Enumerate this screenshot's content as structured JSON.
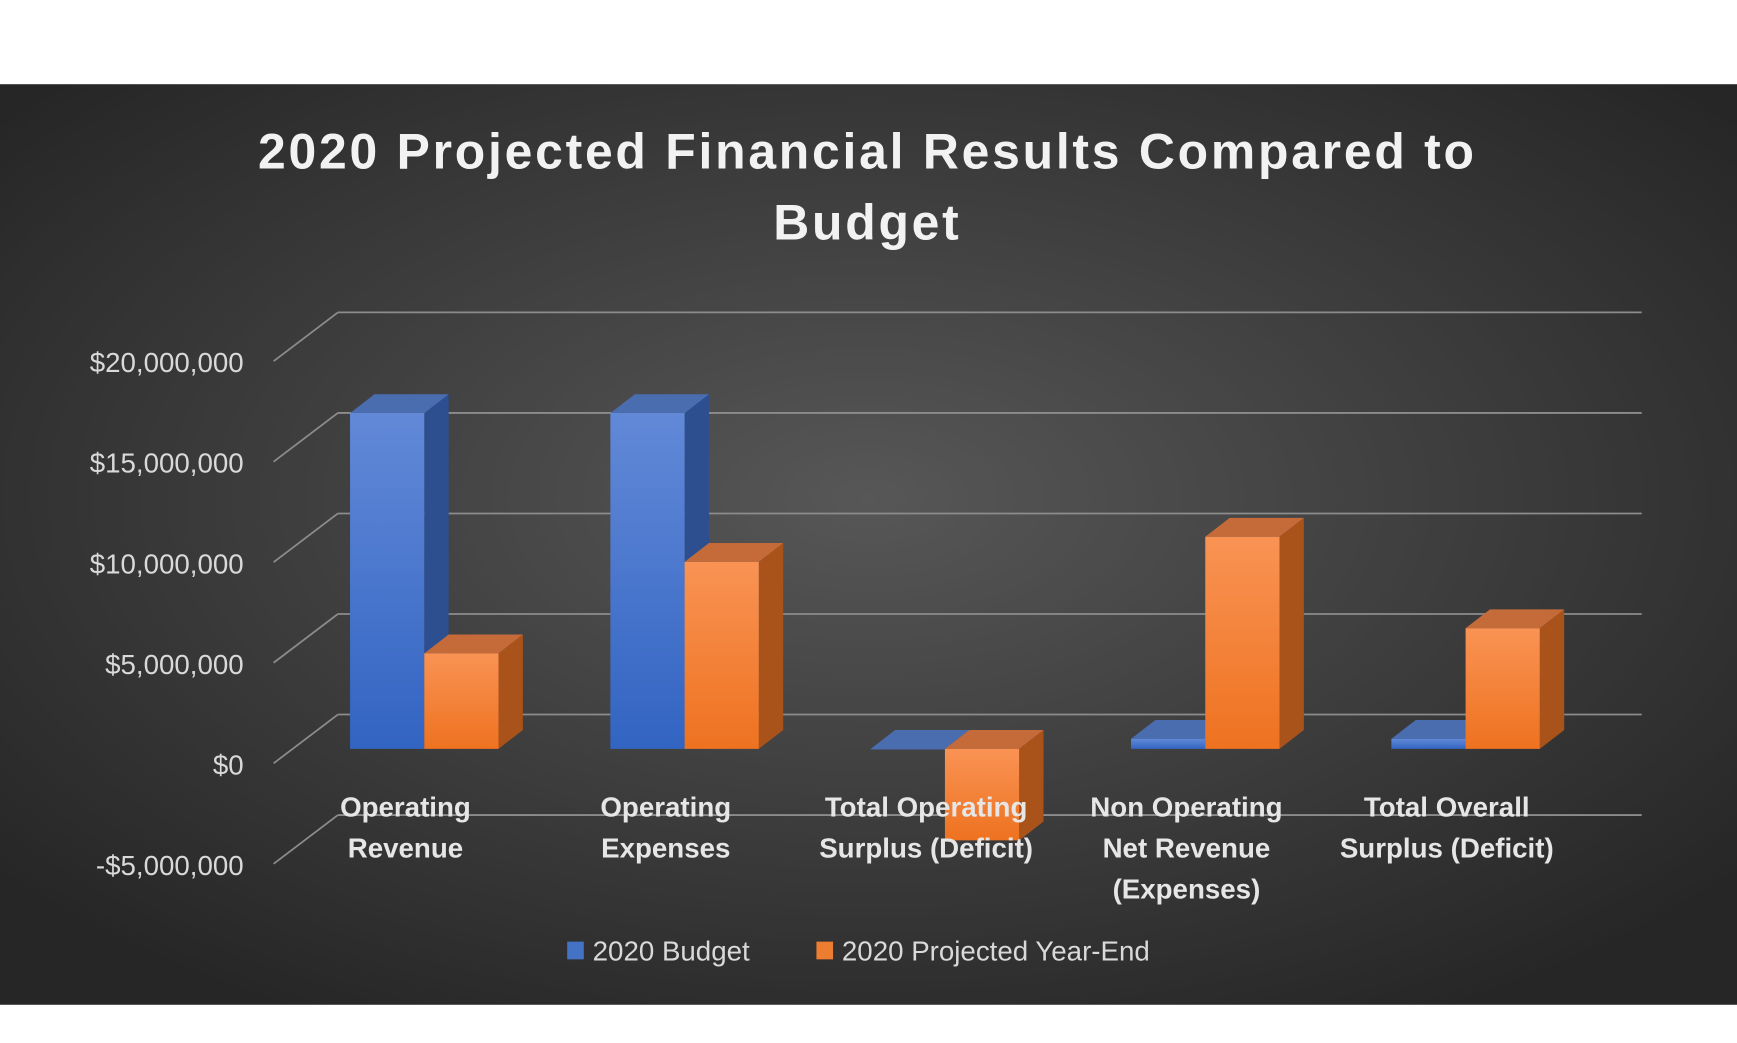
{
  "chart_data": {
    "type": "bar",
    "style": "3d-clustered-column",
    "title": "2020 Projected Financial Results Compared to Budget",
    "title_lines": [
      "2020 Projected Financial Results Compared to",
      "Budget"
    ],
    "xlabel": "",
    "ylabel": "",
    "categories": [
      "Operating Revenue",
      "Operating Expenses",
      "Total Operating Surplus (Deficit)",
      "Non Operating Net Revenue (Expenses)",
      "Total Overall Surplus (Deficit)"
    ],
    "category_lines": [
      [
        "Operating",
        "Revenue"
      ],
      [
        "Operating",
        "Expenses"
      ],
      [
        "Total Operating",
        "Surplus (Deficit)"
      ],
      [
        "Non Operating",
        "Net Revenue",
        "(Expenses)"
      ],
      [
        "Total Overall",
        "Surplus (Deficit)"
      ]
    ],
    "series": [
      {
        "name": "2020 Budget",
        "color": "#4472c4",
        "values": [
          16700000,
          16700000,
          0,
          500000,
          500000
        ]
      },
      {
        "name": "2020 Projected Year-End",
        "color": "#ed7d31",
        "values": [
          4750000,
          9300000,
          -4550000,
          10550000,
          6000000
        ]
      }
    ],
    "ylim": [
      -5000000,
      20000000
    ],
    "yticks": [
      -5000000,
      0,
      5000000,
      10000000,
      15000000,
      20000000
    ],
    "ytick_labels": [
      "-$5,000,000",
      "$0",
      "$5,000,000",
      "$10,000,000",
      "$15,000,000",
      "$20,000,000"
    ],
    "grid": true,
    "legend_position": "bottom",
    "background": "dark-gray-radial"
  }
}
